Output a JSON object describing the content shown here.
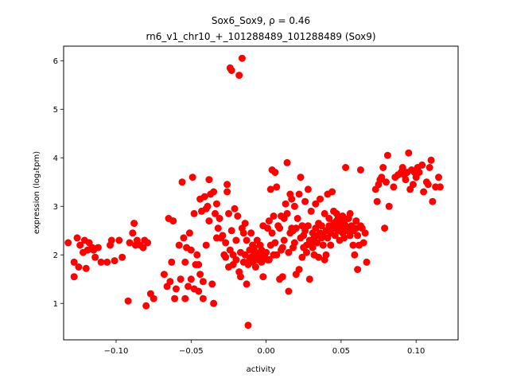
{
  "chart_data": {
    "type": "scatter",
    "title_line1": "Sox6_Sox9, ρ = 0.46",
    "title_line2": "rn6_v1_chr10_+_101288489_101288489 (Sox9)",
    "xlabel": "activity",
    "ylabel": "expression (log₂tpm)",
    "xlim": [
      -0.135,
      0.128
    ],
    "ylim": [
      0.25,
      6.3
    ],
    "xticks": [
      -0.1,
      -0.05,
      0.0,
      0.05,
      0.1
    ],
    "xtick_labels": [
      "−0.10",
      "−0.05",
      "0.00",
      "0.05",
      "0.10"
    ],
    "yticks": [
      1,
      2,
      3,
      4,
      5,
      6
    ],
    "ytick_labels": [
      "1",
      "2",
      "3",
      "4",
      "5",
      "6"
    ],
    "grid": false,
    "marker_color": "#ff0000",
    "points": [
      [
        -0.132,
        2.25
      ],
      [
        -0.128,
        1.85
      ],
      [
        -0.128,
        1.55
      ],
      [
        -0.126,
        2.35
      ],
      [
        -0.125,
        1.75
      ],
      [
        -0.124,
        2.2
      ],
      [
        -0.122,
        2.05
      ],
      [
        -0.121,
        2.3
      ],
      [
        -0.12,
        1.72
      ],
      [
        -0.119,
        2.1
      ],
      [
        -0.118,
        2.25
      ],
      [
        -0.116,
        2.15
      ],
      [
        -0.115,
        2.1
      ],
      [
        -0.114,
        1.95
      ],
      [
        -0.112,
        2.15
      ],
      [
        -0.11,
        1.85
      ],
      [
        -0.106,
        1.85
      ],
      [
        -0.104,
        2.2
      ],
      [
        -0.103,
        2.3
      ],
      [
        -0.101,
        1.88
      ],
      [
        -0.098,
        2.3
      ],
      [
        -0.096,
        1.95
      ],
      [
        -0.092,
        1.05
      ],
      [
        -0.091,
        2.25
      ],
      [
        -0.089,
        2.45
      ],
      [
        -0.088,
        2.65
      ],
      [
        -0.087,
        2.2
      ],
      [
        -0.086,
        2.3
      ],
      [
        -0.084,
        2.2
      ],
      [
        -0.082,
        2.15
      ],
      [
        -0.081,
        2.3
      ],
      [
        -0.08,
        0.95
      ],
      [
        -0.079,
        2.25
      ],
      [
        -0.077,
        1.2
      ],
      [
        -0.075,
        1.1
      ],
      [
        -0.068,
        1.6
      ],
      [
        -0.066,
        1.35
      ],
      [
        -0.065,
        2.75
      ],
      [
        -0.064,
        1.45
      ],
      [
        -0.063,
        1.85
      ],
      [
        -0.062,
        2.7
      ],
      [
        -0.061,
        1.1
      ],
      [
        -0.06,
        1.3
      ],
      [
        -0.058,
        2.2
      ],
      [
        -0.057,
        1.5
      ],
      [
        -0.056,
        3.5
      ],
      [
        -0.055,
        2.35
      ],
      [
        -0.054,
        1.1
      ],
      [
        -0.054,
        1.85
      ],
      [
        -0.053,
        2.15
      ],
      [
        -0.052,
        1.35
      ],
      [
        -0.051,
        2.45
      ],
      [
        -0.05,
        2.1
      ],
      [
        -0.05,
        1.5
      ],
      [
        -0.049,
        3.6
      ],
      [
        -0.048,
        1.3
      ],
      [
        -0.048,
        2.85
      ],
      [
        -0.047,
        1.8
      ],
      [
        -0.046,
        2.0
      ],
      [
        -0.045,
        1.25
      ],
      [
        -0.045,
        1.8
      ],
      [
        -0.044,
        3.15
      ],
      [
        -0.044,
        1.6
      ],
      [
        -0.043,
        2.9
      ],
      [
        -0.042,
        1.1
      ],
      [
        -0.042,
        1.45
      ],
      [
        -0.041,
        3.2
      ],
      [
        -0.04,
        2.95
      ],
      [
        -0.04,
        2.2
      ],
      [
        -0.039,
        3.0
      ],
      [
        -0.038,
        3.55
      ],
      [
        -0.038,
        2.7
      ],
      [
        -0.037,
        3.25
      ],
      [
        -0.036,
        1.4
      ],
      [
        -0.035,
        1.0
      ],
      [
        -0.035,
        3.3
      ],
      [
        -0.034,
        2.85
      ],
      [
        -0.033,
        3.05
      ],
      [
        -0.033,
        2.35
      ],
      [
        -0.032,
        2.55
      ],
      [
        -0.031,
        2.75
      ],
      [
        -0.03,
        2.35
      ],
      [
        -0.029,
        2.4
      ],
      [
        -0.028,
        2.0
      ],
      [
        -0.027,
        1.95
      ],
      [
        -0.027,
        2.25
      ],
      [
        -0.026,
        3.45
      ],
      [
        -0.026,
        3.3
      ],
      [
        -0.025,
        2.85
      ],
      [
        -0.025,
        1.75
      ],
      [
        -0.024,
        2.1
      ],
      [
        -0.024,
        5.85
      ],
      [
        -0.023,
        5.8
      ],
      [
        -0.023,
        2.5
      ],
      [
        -0.022,
        2.0
      ],
      [
        -0.022,
        1.8
      ],
      [
        -0.021,
        2.95
      ],
      [
        -0.02,
        2.3
      ],
      [
        -0.02,
        1.9
      ],
      [
        -0.019,
        2.8
      ],
      [
        -0.018,
        1.65
      ],
      [
        -0.018,
        5.7
      ],
      [
        -0.017,
        2.05
      ],
      [
        -0.017,
        1.55
      ],
      [
        -0.016,
        6.05
      ],
      [
        -0.016,
        2.55
      ],
      [
        -0.015,
        2.45
      ],
      [
        -0.015,
        1.85
      ],
      [
        -0.014,
        2.65
      ],
      [
        -0.014,
        2.0
      ],
      [
        -0.013,
        1.4
      ],
      [
        -0.013,
        2.3
      ],
      [
        -0.012,
        0.55
      ],
      [
        -0.012,
        1.8
      ],
      [
        -0.011,
        2.1
      ],
      [
        -0.011,
        1.9
      ],
      [
        -0.01,
        2.45
      ],
      [
        -0.01,
        1.95
      ],
      [
        -0.009,
        2.2
      ],
      [
        -0.009,
        1.85
      ],
      [
        -0.008,
        2.0
      ],
      [
        -0.008,
        2.15
      ],
      [
        -0.007,
        1.75
      ],
      [
        -0.007,
        2.05
      ],
      [
        -0.006,
        2.3
      ],
      [
        -0.006,
        1.9
      ],
      [
        -0.005,
        2.0
      ],
      [
        -0.004,
        2.2
      ],
      [
        -0.004,
        1.95
      ],
      [
        -0.003,
        1.85
      ],
      [
        -0.003,
        2.1
      ],
      [
        -0.002,
        2.6
      ],
      [
        -0.002,
        1.55
      ],
      [
        -0.001,
        2.0
      ],
      [
        -0.001,
        1.95
      ],
      [
        0.0,
        2.05
      ],
      [
        0.001,
        1.9
      ],
      [
        0.001,
        2.55
      ],
      [
        0.002,
        2.7
      ],
      [
        0.002,
        1.9
      ],
      [
        0.003,
        3.35
      ],
      [
        0.003,
        2.2
      ],
      [
        0.004,
        3.75
      ],
      [
        0.004,
        2.45
      ],
      [
        0.005,
        2.8
      ],
      [
        0.005,
        2.0
      ],
      [
        0.006,
        3.7
      ],
      [
        0.006,
        2.25
      ],
      [
        0.007,
        3.4
      ],
      [
        0.007,
        2.0
      ],
      [
        0.008,
        2.6
      ],
      [
        0.009,
        2.55
      ],
      [
        0.009,
        1.5
      ],
      [
        0.01,
        2.8
      ],
      [
        0.01,
        2.1
      ],
      [
        0.011,
        1.55
      ],
      [
        0.011,
        2.15
      ],
      [
        0.012,
        2.3
      ],
      [
        0.012,
        2.75
      ],
      [
        0.013,
        3.05
      ],
      [
        0.014,
        2.85
      ],
      [
        0.014,
        3.9
      ],
      [
        0.015,
        2.05
      ],
      [
        0.015,
        1.25
      ],
      [
        0.016,
        3.25
      ],
      [
        0.016,
        2.45
      ],
      [
        0.017,
        3.15
      ],
      [
        0.017,
        2.55
      ],
      [
        0.018,
        2.15
      ],
      [
        0.018,
        2.5
      ],
      [
        0.019,
        3.0
      ],
      [
        0.019,
        2.25
      ],
      [
        0.02,
        2.55
      ],
      [
        0.02,
        1.6
      ],
      [
        0.021,
        2.75
      ],
      [
        0.022,
        3.25
      ],
      [
        0.022,
        1.7
      ],
      [
        0.023,
        3.6
      ],
      [
        0.023,
        2.35
      ],
      [
        0.024,
        2.6
      ],
      [
        0.024,
        1.95
      ],
      [
        0.025,
        2.4
      ],
      [
        0.025,
        2.15
      ],
      [
        0.026,
        3.1
      ],
      [
        0.026,
        2.5
      ],
      [
        0.027,
        2.2
      ],
      [
        0.027,
        2.05
      ],
      [
        0.028,
        2.6
      ],
      [
        0.028,
        3.35
      ],
      [
        0.029,
        2.3
      ],
      [
        0.029,
        1.5
      ],
      [
        0.03,
        2.25
      ],
      [
        0.03,
        2.9
      ],
      [
        0.031,
        2.45
      ],
      [
        0.031,
        2.15
      ],
      [
        0.032,
        2.35
      ],
      [
        0.032,
        2.0
      ],
      [
        0.033,
        2.55
      ],
      [
        0.033,
        3.05
      ],
      [
        0.034,
        2.4
      ],
      [
        0.034,
        2.25
      ],
      [
        0.035,
        2.65
      ],
      [
        0.035,
        1.95
      ],
      [
        0.036,
        2.45
      ],
      [
        0.036,
        3.15
      ],
      [
        0.037,
        2.35
      ],
      [
        0.037,
        2.6
      ],
      [
        0.038,
        2.2
      ],
      [
        0.038,
        2.4
      ],
      [
        0.039,
        2.85
      ],
      [
        0.039,
        1.9
      ],
      [
        0.04,
        2.5
      ],
      [
        0.04,
        2.0
      ],
      [
        0.041,
        2.35
      ],
      [
        0.041,
        3.25
      ],
      [
        0.042,
        2.6
      ],
      [
        0.042,
        2.75
      ],
      [
        0.043,
        2.45
      ],
      [
        0.043,
        2.2
      ],
      [
        0.044,
        2.55
      ],
      [
        0.044,
        3.3
      ],
      [
        0.045,
        2.65
      ],
      [
        0.045,
        2.9
      ],
      [
        0.046,
        2.4
      ],
      [
        0.046,
        2.55
      ],
      [
        0.047,
        2.7
      ],
      [
        0.047,
        2.85
      ],
      [
        0.048,
        2.5
      ],
      [
        0.048,
        2.75
      ],
      [
        0.049,
        2.6
      ],
      [
        0.049,
        2.3
      ],
      [
        0.05,
        2.55
      ],
      [
        0.05,
        2.65
      ],
      [
        0.051,
        2.45
      ],
      [
        0.051,
        2.8
      ],
      [
        0.052,
        2.7
      ],
      [
        0.052,
        2.35
      ],
      [
        0.053,
        2.6
      ],
      [
        0.053,
        3.8
      ],
      [
        0.054,
        2.55
      ],
      [
        0.054,
        2.5
      ],
      [
        0.055,
        2.75
      ],
      [
        0.056,
        2.4
      ],
      [
        0.056,
        2.85
      ],
      [
        0.057,
        2.6
      ],
      [
        0.058,
        2.2
      ],
      [
        0.058,
        2.5
      ],
      [
        0.059,
        2.0
      ],
      [
        0.06,
        2.55
      ],
      [
        0.06,
        2.7
      ],
      [
        0.061,
        1.7
      ],
      [
        0.061,
        2.4
      ],
      [
        0.062,
        2.2
      ],
      [
        0.063,
        3.75
      ],
      [
        0.063,
        2.6
      ],
      [
        0.064,
        2.55
      ],
      [
        0.065,
        2.25
      ],
      [
        0.066,
        2.45
      ],
      [
        0.067,
        1.85
      ],
      [
        0.073,
        3.35
      ],
      [
        0.074,
        3.1
      ],
      [
        0.075,
        3.45
      ],
      [
        0.076,
        3.55
      ],
      [
        0.077,
        3.6
      ],
      [
        0.078,
        3.8
      ],
      [
        0.079,
        2.55
      ],
      [
        0.08,
        3.5
      ],
      [
        0.081,
        4.05
      ],
      [
        0.082,
        3.0
      ],
      [
        0.085,
        3.4
      ],
      [
        0.086,
        3.6
      ],
      [
        0.088,
        3.65
      ],
      [
        0.09,
        3.7
      ],
      [
        0.091,
        3.75
      ],
      [
        0.091,
        3.8
      ],
      [
        0.092,
        3.65
      ],
      [
        0.093,
        3.55
      ],
      [
        0.094,
        3.7
      ],
      [
        0.095,
        4.1
      ],
      [
        0.096,
        3.35
      ],
      [
        0.097,
        3.75
      ],
      [
        0.098,
        3.45
      ],
      [
        0.099,
        3.7
      ],
      [
        0.1,
        3.6
      ],
      [
        0.101,
        3.8
      ],
      [
        0.102,
        3.7
      ],
      [
        0.104,
        3.85
      ],
      [
        0.105,
        3.3
      ],
      [
        0.107,
        3.5
      ],
      [
        0.108,
        3.45
      ],
      [
        0.109,
        3.8
      ],
      [
        0.11,
        3.95
      ],
      [
        0.111,
        3.1
      ],
      [
        0.113,
        3.4
      ],
      [
        0.115,
        3.6
      ],
      [
        0.116,
        3.4
      ]
    ]
  }
}
